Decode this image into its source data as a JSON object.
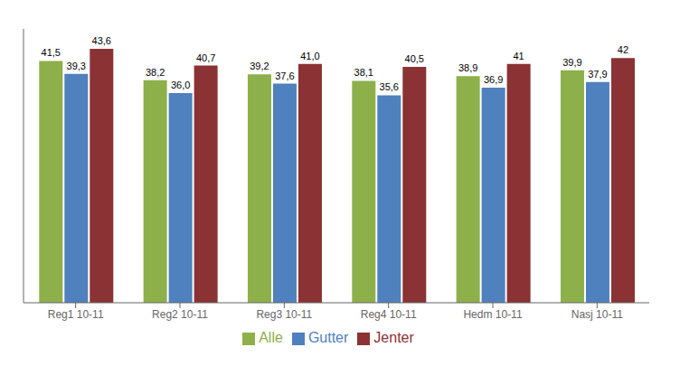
{
  "chart_data": {
    "type": "bar",
    "categories": [
      "Reg1 10-11",
      "Reg2 10-11",
      "Reg3 10-11",
      "Reg4 10-11",
      "Hedm 10-11",
      "Nasj 10-11"
    ],
    "series": [
      {
        "name": "Alle",
        "color": "#8db04a",
        "values": [
          41.5,
          38.2,
          39.2,
          38.1,
          38.9,
          39.9
        ],
        "value_labels": [
          "41,5",
          "38,2",
          "39,2",
          "38,1",
          "38,9",
          "39,9"
        ]
      },
      {
        "name": "Gutter",
        "color": "#4f81be",
        "values": [
          39.3,
          36.0,
          37.6,
          35.6,
          36.9,
          37.9
        ],
        "value_labels": [
          "39,3",
          "36,0",
          "37,6",
          "35,6",
          "36,9",
          "37,9"
        ]
      },
      {
        "name": "Jenter",
        "color": "#8b3234",
        "values": [
          43.6,
          40.7,
          41.0,
          40.5,
          41.0,
          42.0
        ],
        "value_labels": [
          "43,6",
          "40,7",
          "41,0",
          "40,5",
          "41",
          "42"
        ]
      }
    ],
    "ylim": [
      0,
      47
    ],
    "data_labels": true,
    "tick_labels": "x",
    "legend": "bottom",
    "grid": false
  }
}
